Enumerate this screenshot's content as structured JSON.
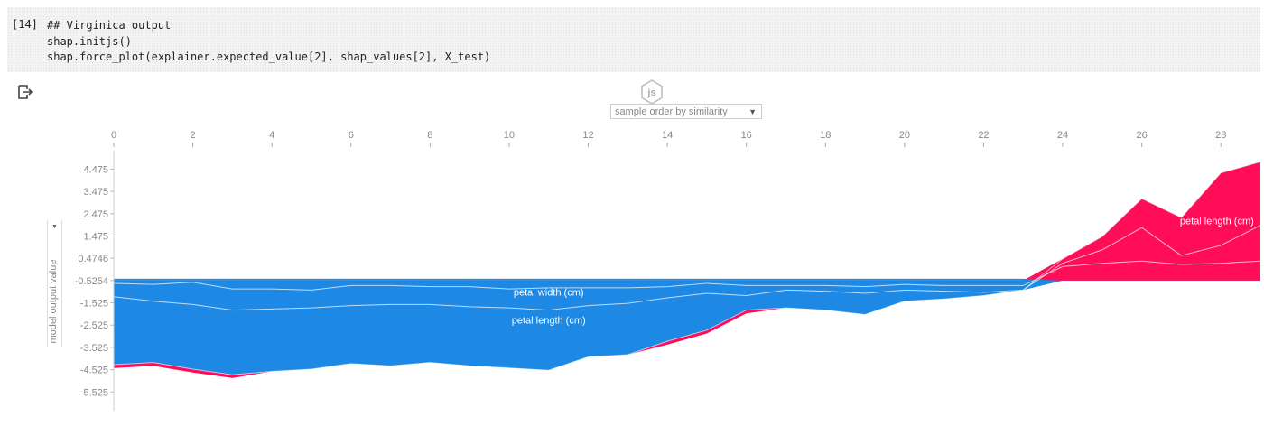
{
  "cell": {
    "execution_count": "[14]",
    "code_lines": [
      "## Virginica output",
      "shap.initjs()",
      "shap.force_plot(explainer.expected_value[2], shap_values[2], X_test)"
    ]
  },
  "output": {
    "badge_text": "js",
    "ordering_select": "sample order by similarity",
    "ylabel_select": "model output value"
  },
  "colors": {
    "negative": "#1e88e5",
    "positive": "#ff0d57"
  },
  "chart_data": {
    "type": "area",
    "x_ticks": [
      "0",
      "2",
      "4",
      "6",
      "8",
      "10",
      "12",
      "14",
      "16",
      "18",
      "20",
      "22",
      "24",
      "26",
      "28"
    ],
    "y_ticks": [
      "4.475",
      "3.475",
      "2.475",
      "1.475",
      "0.4746",
      "-0.5254",
      "-1.525",
      "-2.525",
      "-3.525",
      "-4.525",
      "-5.525"
    ],
    "ylim": [
      -6.2,
      5.3
    ],
    "xlim": [
      0,
      29
    ],
    "axis_position": "top",
    "x": [
      0,
      1,
      2,
      3,
      4,
      5,
      6,
      7,
      8,
      9,
      10,
      11,
      12,
      13,
      14,
      15,
      16,
      17,
      18,
      19,
      20,
      21,
      22,
      23,
      24,
      25,
      26,
      27,
      28,
      29
    ],
    "output_value": [
      -4.3,
      -4.2,
      -4.5,
      -4.75,
      -4.6,
      -4.5,
      -4.25,
      -4.35,
      -4.2,
      -4.35,
      -4.45,
      -4.55,
      -3.95,
      -3.85,
      -3.25,
      -2.75,
      -1.85,
      -1.75,
      -1.85,
      -2.05,
      -1.45,
      -1.35,
      -1.2,
      -0.95,
      0.45,
      1.45,
      3.15,
      2.3,
      4.3,
      4.8
    ],
    "base_value": -0.5254,
    "series": [
      {
        "name": "petal width (cm)",
        "values": [
          -0.65,
          -0.7,
          -0.6,
          -0.9,
          -0.9,
          -0.95,
          -0.75,
          -0.75,
          -0.8,
          -0.8,
          -0.9,
          -0.85,
          -0.85,
          -0.85,
          -0.8,
          -0.65,
          -0.75,
          -0.75,
          -0.75,
          -0.8,
          -0.7,
          -0.75,
          -0.75,
          -0.75,
          0.1,
          0.25,
          0.35,
          0.2,
          0.25,
          0.35
        ]
      },
      {
        "name": "petal length (cm)",
        "values": [
          -1.25,
          -1.45,
          -1.6,
          -1.85,
          -1.8,
          -1.75,
          -1.65,
          -1.6,
          -1.6,
          -1.7,
          -1.75,
          -1.85,
          -1.65,
          -1.55,
          -1.3,
          -1.1,
          -1.2,
          -0.95,
          -1.0,
          -1.1,
          -0.95,
          -1.0,
          -1.05,
          -0.95,
          0.25,
          0.85,
          1.85,
          0.6,
          1.05,
          1.95
        ]
      }
    ],
    "labels": [
      {
        "text": "petal width (cm)",
        "x": 11,
        "y": -1.2
      },
      {
        "text": "petal length (cm)",
        "x": 11,
        "y": -2.45
      },
      {
        "text": "petal length (cm)",
        "x": 27.9,
        "y": 2.0
      }
    ]
  }
}
